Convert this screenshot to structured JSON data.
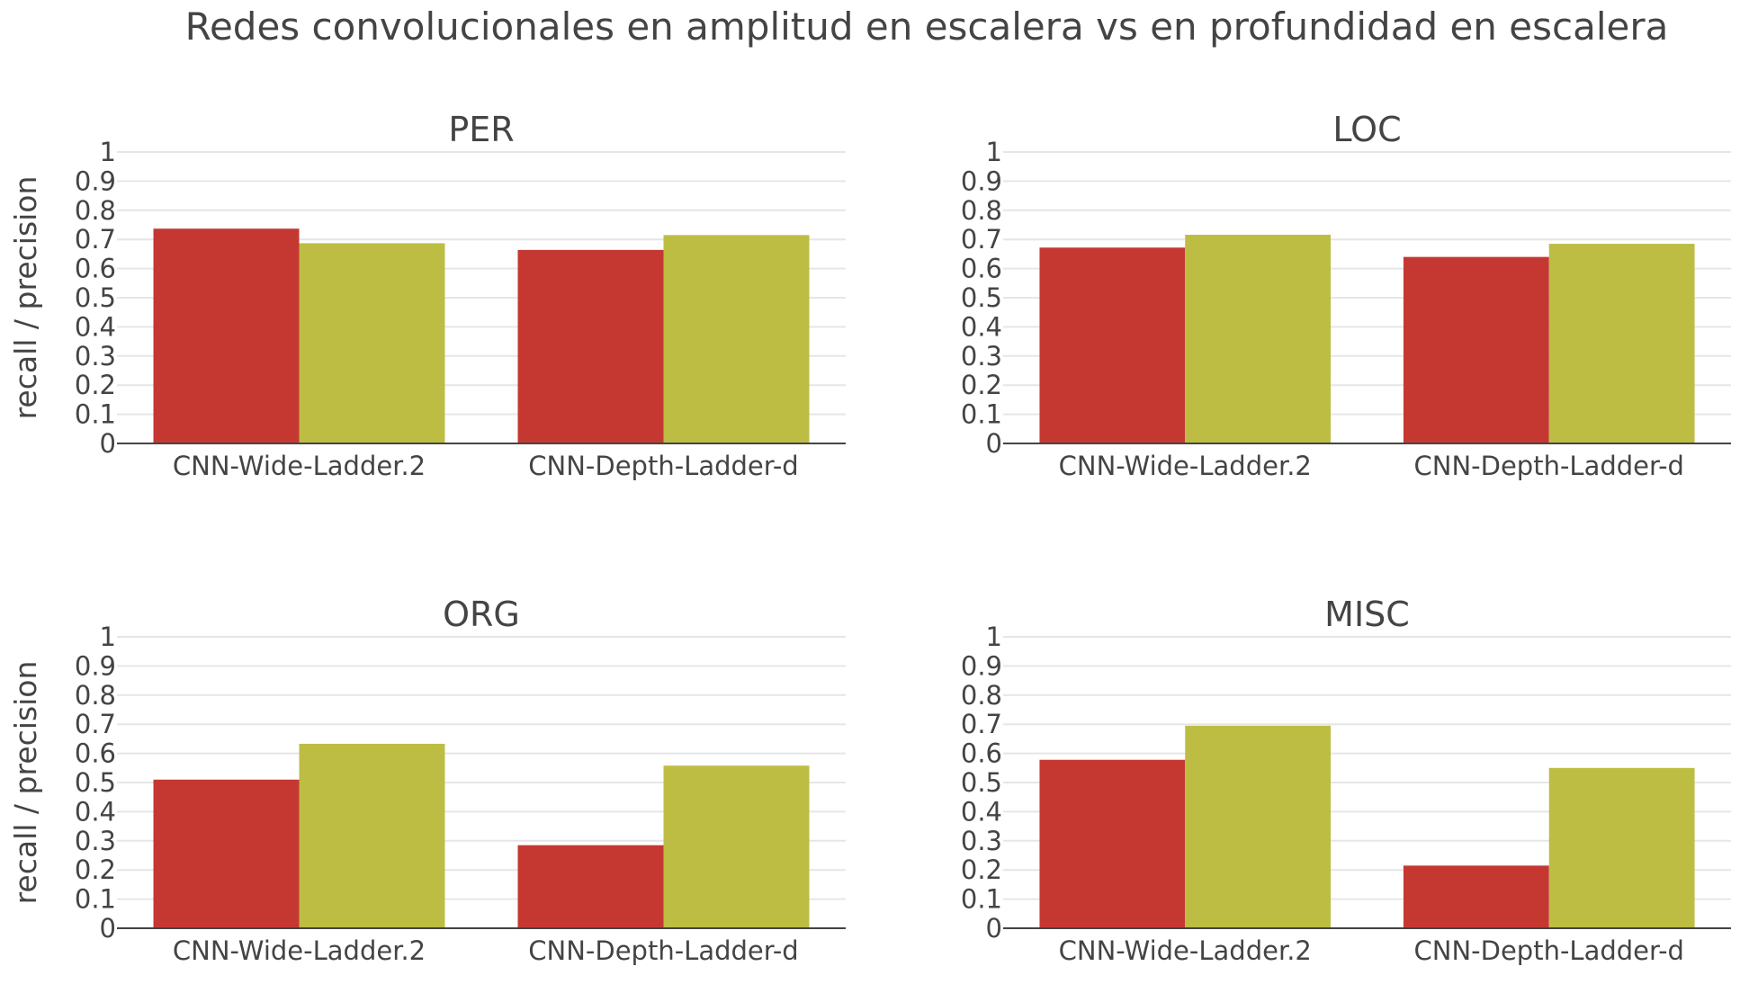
{
  "title": "Redes convolucionales en amplitud en escalera vs en profundidad en escalera",
  "colors": {
    "series_1": "#c53832",
    "series_2": "#bdbd44"
  },
  "chart_data": [
    {
      "type": "bar",
      "title": "PER",
      "ylabel": "recall / precision",
      "ylim": [
        0,
        1
      ],
      "yticks": [
        "0",
        "0.1",
        "0.2",
        "0.3",
        "0.4",
        "0.5",
        "0.6",
        "0.7",
        "0.8",
        "0.9",
        "1"
      ],
      "grid": true,
      "categories": [
        "CNN-Wide-Ladder.2",
        "CNN-Depth-Ladder-d"
      ],
      "series": [
        {
          "values": [
            0.737,
            0.664
          ]
        },
        {
          "values": [
            0.687,
            0.715
          ]
        }
      ]
    },
    {
      "type": "bar",
      "title": "LOC",
      "ylabel": "",
      "ylim": [
        0,
        1
      ],
      "yticks": [
        "0",
        "0.1",
        "0.2",
        "0.3",
        "0.4",
        "0.5",
        "0.6",
        "0.7",
        "0.8",
        "0.9",
        "1"
      ],
      "grid": true,
      "categories": [
        "CNN-Wide-Ladder.2",
        "CNN-Depth-Ladder-d"
      ],
      "series": [
        {
          "values": [
            0.672,
            0.64
          ]
        },
        {
          "values": [
            0.716,
            0.685
          ]
        }
      ]
    },
    {
      "type": "bar",
      "title": "ORG",
      "ylabel": "recall / precision",
      "ylim": [
        0,
        1
      ],
      "yticks": [
        "0",
        "0.1",
        "0.2",
        "0.3",
        "0.4",
        "0.5",
        "0.6",
        "0.7",
        "0.8",
        "0.9",
        "1"
      ],
      "grid": true,
      "categories": [
        "CNN-Wide-Ladder.2",
        "CNN-Depth-Ladder-d"
      ],
      "series": [
        {
          "values": [
            0.51,
            0.285
          ]
        },
        {
          "values": [
            0.633,
            0.558
          ]
        }
      ]
    },
    {
      "type": "bar",
      "title": "MISC",
      "ylabel": "",
      "ylim": [
        0,
        1
      ],
      "yticks": [
        "0",
        "0.1",
        "0.2",
        "0.3",
        "0.4",
        "0.5",
        "0.6",
        "0.7",
        "0.8",
        "0.9",
        "1"
      ],
      "grid": true,
      "categories": [
        "CNN-Wide-Ladder.2",
        "CNN-Depth-Ladder-d"
      ],
      "series": [
        {
          "values": [
            0.578,
            0.215
          ]
        },
        {
          "values": [
            0.695,
            0.55
          ]
        }
      ]
    }
  ]
}
